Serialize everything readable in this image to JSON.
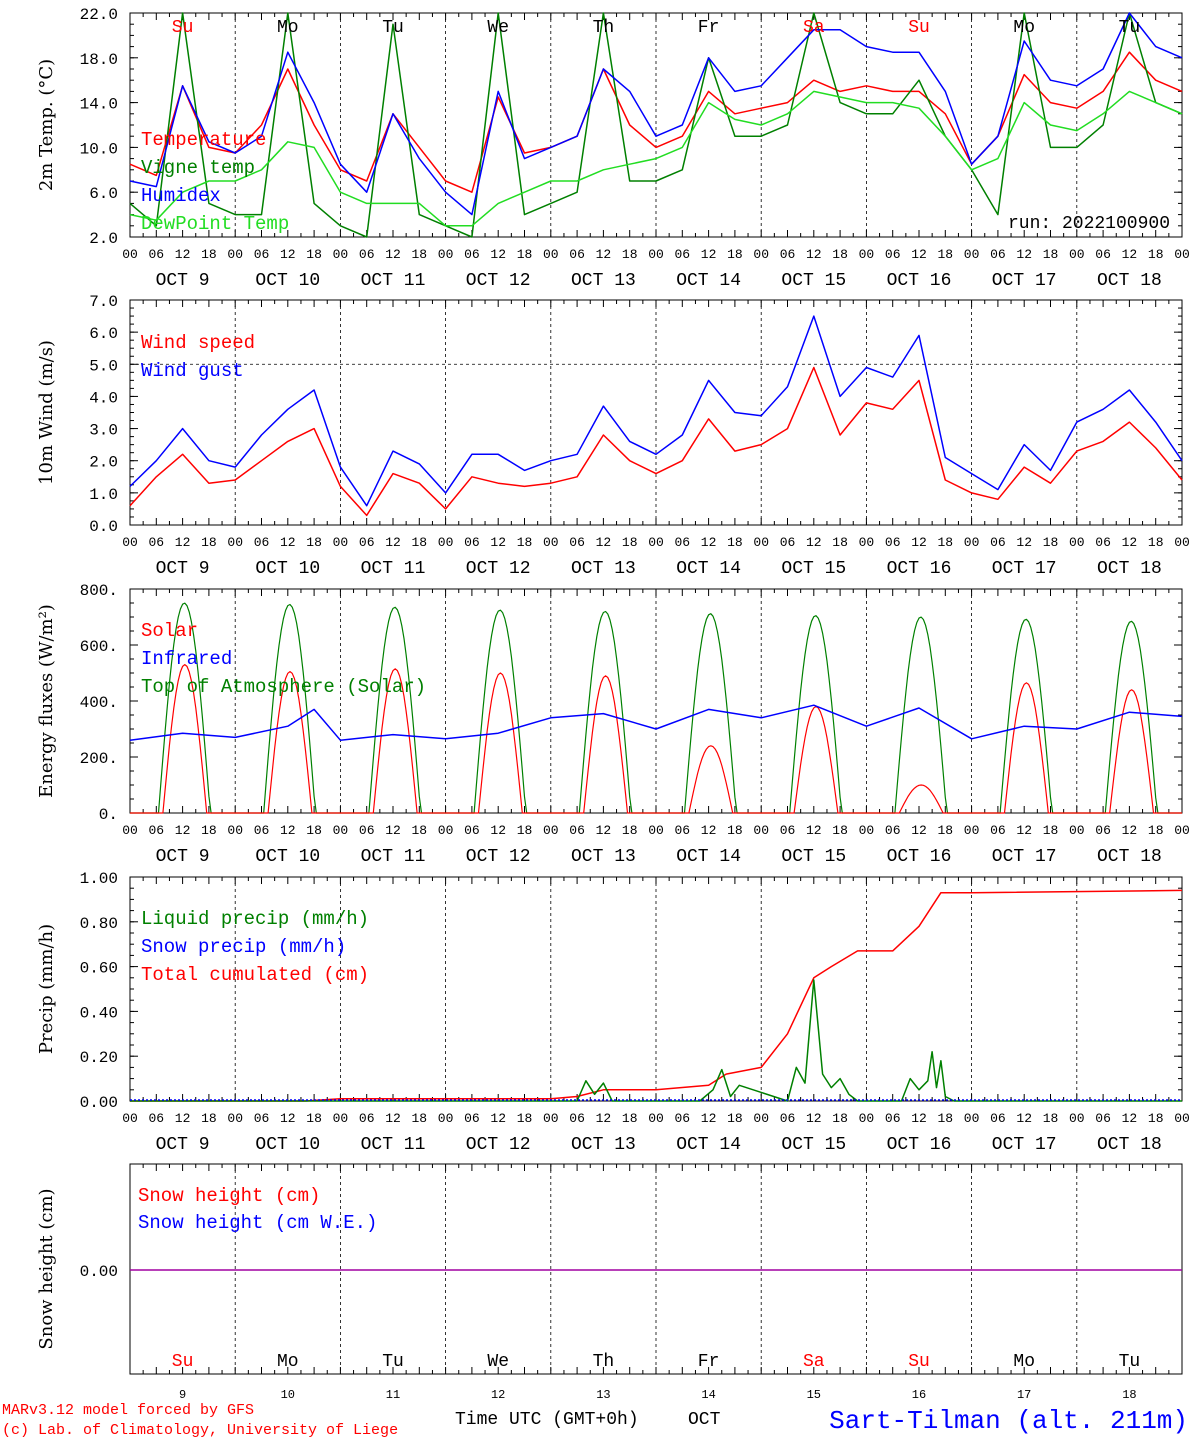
{
  "colors": {
    "red": "#ff0000",
    "green": "#008000",
    "blue": "#0000ff",
    "lightgreen": "#22dd22",
    "purple": "#a000a0",
    "axis": "#000000"
  },
  "x_axis": {
    "hour_labels": [
      "00",
      "06",
      "12",
      "18"
    ],
    "final_hour_label": "00",
    "date_labels": [
      "OCT  9",
      "OCT 10",
      "OCT 11",
      "OCT 12",
      "OCT 13",
      "OCT 14",
      "OCT 15",
      "OCT 16",
      "OCT 17",
      "OCT 18"
    ],
    "weekday_labels": [
      "Su",
      "Mo",
      "Tu",
      "We",
      "Th",
      "Fr",
      "Sa",
      "Su",
      "Mo",
      "Tu"
    ],
    "weekday_colors": [
      "red",
      "black",
      "black",
      "black",
      "black",
      "black",
      "red",
      "red",
      "black",
      "black"
    ],
    "day_numbers": [
      "9",
      "10",
      "11",
      "12",
      "13",
      "14",
      "15",
      "16",
      "17",
      "18"
    ],
    "title": "Time UTC (GMT+0h)",
    "month": "OCT"
  },
  "footer": {
    "credit_1": "MARv3.12 model forced by GFS",
    "credit_2": "(c) Lab. of Climatology, University of Liege",
    "station": "Sart-Tilman (alt. 211m)"
  },
  "chart_data": [
    {
      "id": "temperature",
      "type": "line",
      "ylabel": "2m Temp. (°C)",
      "ylim": [
        2,
        22
      ],
      "yticks": [
        "2.0",
        "6.0",
        "10.0",
        "14.0",
        "18.0",
        "22.0"
      ],
      "annotation": "run: 2022100900",
      "legend": [
        {
          "name": "Temperature",
          "color": "red"
        },
        {
          "name": "Vigne temp",
          "color": "green"
        },
        {
          "name": "Humidex",
          "color": "blue"
        },
        {
          "name": "DewPoint Temp",
          "color": "lightgreen"
        }
      ],
      "series": [
        {
          "name": "Temperature",
          "color": "red",
          "x_hours": [
            0,
            6,
            12,
            18,
            24,
            30,
            36,
            42,
            48,
            54,
            60,
            66,
            72,
            78,
            84,
            90,
            96,
            102,
            108,
            114,
            120,
            126,
            132,
            138,
            144,
            150,
            156,
            162,
            168,
            174,
            180,
            186,
            192,
            198,
            204,
            210,
            216,
            222,
            228,
            234,
            240
          ],
          "y": [
            8.5,
            7.5,
            15.5,
            10,
            9.5,
            12,
            17,
            12,
            8,
            7,
            13,
            10,
            7,
            6,
            14.5,
            9.5,
            10,
            11,
            17,
            12,
            10,
            11,
            15,
            13,
            13.5,
            14,
            16,
            15,
            15.5,
            15,
            15,
            13,
            8.5,
            11,
            16.5,
            14,
            13.5,
            15,
            18.5,
            16,
            15
          ]
        },
        {
          "name": "Vigne temp",
          "color": "green",
          "x_hours": [
            0,
            6,
            12,
            18,
            24,
            30,
            36,
            42,
            48,
            54,
            60,
            66,
            72,
            78,
            84,
            90,
            96,
            102,
            108,
            114,
            120,
            126,
            132,
            138,
            144,
            150,
            156,
            162,
            168,
            174,
            180,
            186,
            192,
            198,
            204,
            210,
            216,
            222,
            228,
            234,
            240
          ],
          "y": [
            5,
            3,
            22,
            5,
            4,
            4,
            22,
            5,
            3,
            2,
            21,
            4,
            3,
            2,
            22,
            4,
            5,
            6,
            22,
            7,
            7,
            8,
            18,
            11,
            11,
            12,
            22,
            14,
            13,
            13,
            16,
            11,
            8,
            4,
            22,
            10,
            10,
            12,
            22,
            14,
            13
          ]
        },
        {
          "name": "Humidex",
          "color": "blue",
          "x_hours": [
            0,
            6,
            12,
            18,
            24,
            30,
            36,
            42,
            48,
            54,
            60,
            66,
            72,
            78,
            84,
            90,
            96,
            102,
            108,
            114,
            120,
            126,
            132,
            138,
            144,
            150,
            156,
            162,
            168,
            174,
            180,
            186,
            192,
            198,
            204,
            210,
            216,
            222,
            228,
            234,
            240
          ],
          "y": [
            7,
            6.5,
            15.5,
            10.5,
            9.5,
            11,
            18.5,
            14,
            8.5,
            6,
            13,
            9,
            6,
            4,
            15,
            9,
            10,
            11,
            17,
            15,
            11,
            12,
            18,
            15,
            15.5,
            18,
            20.5,
            20.5,
            19,
            18.5,
            18.5,
            15,
            8.5,
            11,
            19.5,
            16,
            15.5,
            17,
            22,
            19,
            18
          ]
        },
        {
          "name": "DewPoint Temp",
          "color": "lightgreen",
          "x_hours": [
            0,
            6,
            12,
            18,
            24,
            30,
            36,
            42,
            48,
            54,
            60,
            66,
            72,
            78,
            84,
            90,
            96,
            102,
            108,
            114,
            120,
            126,
            132,
            138,
            144,
            150,
            156,
            162,
            168,
            174,
            180,
            186,
            192,
            198,
            204,
            210,
            216,
            222,
            228,
            234,
            240
          ],
          "y": [
            4,
            3.5,
            6,
            7,
            7,
            8,
            10.5,
            10,
            6,
            5,
            5,
            5,
            3,
            3,
            5,
            6,
            7,
            7,
            8,
            8.5,
            9,
            10,
            14,
            12.5,
            12,
            13,
            15,
            14.5,
            14,
            14,
            13.5,
            11,
            8,
            9,
            14,
            12,
            11.5,
            13,
            15,
            14,
            13
          ]
        }
      ]
    },
    {
      "id": "wind",
      "type": "line",
      "ylabel": "10m Wind (m/s)",
      "ylim": [
        0,
        7
      ],
      "yticks": [
        "0.0",
        "1.0",
        "2.0",
        "3.0",
        "4.0",
        "5.0",
        "6.0",
        "7.0"
      ],
      "reference_line": 5,
      "legend": [
        {
          "name": "Wind speed",
          "color": "red"
        },
        {
          "name": "Wind gust",
          "color": "blue"
        }
      ],
      "series": [
        {
          "name": "Wind speed",
          "color": "red",
          "x_hours": [
            0,
            6,
            12,
            18,
            24,
            30,
            36,
            42,
            48,
            54,
            60,
            66,
            72,
            78,
            84,
            90,
            96,
            102,
            108,
            114,
            120,
            126,
            132,
            138,
            144,
            150,
            156,
            162,
            168,
            174,
            180,
            186,
            192,
            198,
            204,
            210,
            216,
            222,
            228,
            234,
            240
          ],
          "y": [
            0.6,
            1.5,
            2.2,
            1.3,
            1.4,
            2,
            2.6,
            3,
            1.2,
            0.3,
            1.6,
            1.3,
            0.5,
            1.5,
            1.3,
            1.2,
            1.3,
            1.5,
            2.8,
            2,
            1.6,
            2,
            3.3,
            2.3,
            2.5,
            3,
            4.9,
            2.8,
            3.8,
            3.6,
            4.5,
            1.4,
            1,
            0.8,
            1.8,
            1.3,
            2.3,
            2.6,
            3.2,
            2.4,
            1.4
          ]
        },
        {
          "name": "Wind gust",
          "color": "blue",
          "x_hours": [
            0,
            6,
            12,
            18,
            24,
            30,
            36,
            42,
            48,
            54,
            60,
            66,
            72,
            78,
            84,
            90,
            96,
            102,
            108,
            114,
            120,
            126,
            132,
            138,
            144,
            150,
            156,
            162,
            168,
            174,
            180,
            186,
            192,
            198,
            204,
            210,
            216,
            222,
            228,
            234,
            240
          ],
          "y": [
            1.2,
            2,
            3,
            2,
            1.8,
            2.8,
            3.6,
            4.2,
            1.8,
            0.6,
            2.3,
            1.9,
            1,
            2.2,
            2.2,
            1.7,
            2,
            2.2,
            3.7,
            2.6,
            2.2,
            2.8,
            4.5,
            3.5,
            3.4,
            4.3,
            6.5,
            4,
            4.9,
            4.6,
            5.9,
            2.1,
            1.6,
            1.1,
            2.5,
            1.7,
            3.2,
            3.6,
            4.2,
            3.2,
            2
          ]
        }
      ]
    },
    {
      "id": "energy",
      "type": "line",
      "ylabel": "Energy fluxes (W/m²)",
      "ylim": [
        0,
        800
      ],
      "yticks": [
        "0.",
        "200.",
        "400.",
        "600.",
        "800."
      ],
      "legend": [
        {
          "name": "Solar",
          "color": "red"
        },
        {
          "name": "Infrared",
          "color": "blue"
        },
        {
          "name": "Top of Atmosphere (Solar)",
          "color": "green"
        }
      ],
      "daily_peaks": {
        "toa": [
          750,
          745,
          735,
          725,
          720,
          712,
          705,
          700,
          692,
          685
        ],
        "solar": [
          530,
          505,
          515,
          500,
          490,
          240,
          380,
          100,
          465,
          440
        ]
      },
      "series": [
        {
          "name": "Infrared",
          "color": "blue",
          "x_hours": [
            0,
            12,
            24,
            36,
            42,
            48,
            60,
            72,
            84,
            96,
            108,
            120,
            132,
            144,
            156,
            168,
            180,
            192,
            204,
            216,
            228,
            240
          ],
          "y": [
            260,
            285,
            270,
            310,
            370,
            260,
            280,
            265,
            285,
            340,
            355,
            300,
            370,
            340,
            385,
            310,
            375,
            265,
            310,
            300,
            360,
            345
          ]
        }
      ]
    },
    {
      "id": "precip",
      "type": "line",
      "ylabel": "Precip (mm/h)",
      "ylim": [
        0,
        1
      ],
      "yticks": [
        "0.00",
        "0.20",
        "0.40",
        "0.60",
        "0.80",
        "1.00"
      ],
      "legend": [
        {
          "name": "Liquid precip (mm/h)",
          "color": "green"
        },
        {
          "name": "Snow precip (mm/h)",
          "color": "blue"
        },
        {
          "name": "Total cumulated (cm)",
          "color": "red"
        }
      ],
      "series": [
        {
          "name": "Total cumulated (cm)",
          "color": "red",
          "x_hours": [
            0,
            40,
            48,
            96,
            102,
            108,
            120,
            132,
            136,
            144,
            150,
            156,
            160,
            166,
            174,
            180,
            185,
            192,
            240
          ],
          "y": [
            0,
            0,
            0.01,
            0.01,
            0.02,
            0.05,
            0.05,
            0.07,
            0.12,
            0.15,
            0.3,
            0.55,
            0.6,
            0.67,
            0.67,
            0.78,
            0.93,
            0.93,
            0.94
          ]
        },
        {
          "name": "Liquid precip (mm/h)",
          "color": "green",
          "x_hours": [
            0,
            102,
            104,
            106,
            108,
            110,
            130,
            133,
            135,
            137,
            139,
            150,
            152,
            154,
            156,
            158,
            160,
            162,
            164,
            166,
            176,
            178,
            180,
            182,
            183,
            184,
            185,
            186,
            188,
            200,
            240
          ],
          "y": [
            0,
            0,
            0.09,
            0.03,
            0.08,
            0,
            0,
            0.05,
            0.14,
            0.02,
            0.07,
            0,
            0.15,
            0.08,
            0.54,
            0.12,
            0.06,
            0.1,
            0.03,
            0,
            0,
            0.1,
            0.05,
            0.09,
            0.22,
            0.06,
            0.18,
            0.02,
            0,
            0,
            0
          ]
        }
      ]
    },
    {
      "id": "snow",
      "type": "line",
      "ylabel": "Snow height (cm)",
      "yticks": [
        "0.00"
      ],
      "legend": [
        {
          "name": "Snow height (cm)",
          "color": "red"
        },
        {
          "name": "Snow height (cm W.E.)",
          "color": "blue"
        }
      ],
      "series": [
        {
          "name": "Snow height (cm)",
          "color": "purple",
          "x_hours": [
            0,
            240
          ],
          "y": [
            0,
            0
          ]
        }
      ]
    }
  ]
}
